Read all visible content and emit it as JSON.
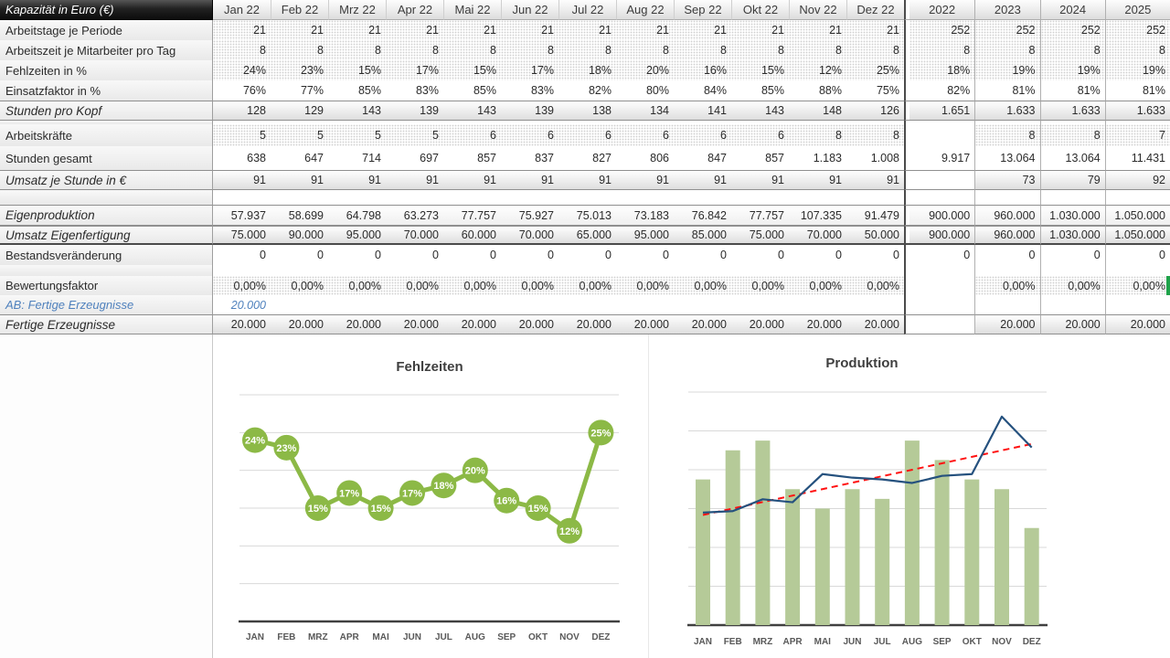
{
  "table": {
    "corner_label": "Kapazität in Euro (€)",
    "month_headers": [
      "Jan 22",
      "Feb 22",
      "Mrz 22",
      "Apr 22",
      "Mai 22",
      "Jun 22",
      "Jul 22",
      "Aug 22",
      "Sep 22",
      "Okt 22",
      "Nov 22",
      "Dez 22"
    ],
    "year_headers": [
      "2022",
      "2023",
      "2024",
      "2025"
    ],
    "rows": [
      {
        "label": "Arbeitstage je Periode",
        "style": "input",
        "comment": true,
        "monthly": [
          "21",
          "21",
          "21",
          "21",
          "21",
          "21",
          "21",
          "21",
          "21",
          "21",
          "21",
          "21"
        ],
        "annual": [
          "252",
          "252",
          "252",
          "252"
        ]
      },
      {
        "label": "Arbeitszeit je Mitarbeiter pro Tag",
        "style": "input",
        "comment": true,
        "monthly": [
          "8",
          "8",
          "8",
          "8",
          "8",
          "8",
          "8",
          "8",
          "8",
          "8",
          "8",
          "8"
        ],
        "annual": [
          "8",
          "8",
          "8",
          "8"
        ]
      },
      {
        "label": "Fehlzeiten in %",
        "style": "input",
        "comment": true,
        "monthly": [
          "24%",
          "23%",
          "15%",
          "17%",
          "15%",
          "17%",
          "18%",
          "20%",
          "16%",
          "15%",
          "12%",
          "25%"
        ],
        "annual": [
          "18%",
          "19%",
          "19%",
          "19%"
        ]
      },
      {
        "label": "Einsatzfaktor in %",
        "style": "calc",
        "monthly": [
          "76%",
          "77%",
          "85%",
          "83%",
          "85%",
          "83%",
          "82%",
          "80%",
          "84%",
          "85%",
          "88%",
          "75%"
        ],
        "annual": [
          "82%",
          "81%",
          "81%",
          "81%"
        ]
      },
      {
        "label": "Stunden pro Kopf",
        "style": "total",
        "monthly": [
          "128",
          "129",
          "143",
          "139",
          "143",
          "139",
          "138",
          "134",
          "141",
          "143",
          "148",
          "126"
        ],
        "annual": [
          "1.651",
          "1.633",
          "1.633",
          "1.633"
        ]
      },
      {
        "style": "spacer"
      },
      {
        "label": "Arbeitskräfte",
        "style": "input",
        "comment": true,
        "monthly": [
          "5",
          "5",
          "5",
          "5",
          "6",
          "6",
          "6",
          "6",
          "6",
          "6",
          "8",
          "8"
        ],
        "annual": [
          "",
          "8",
          "8",
          "7"
        ]
      },
      {
        "label": "Stunden gesamt",
        "style": "calc",
        "monthly": [
          "638",
          "647",
          "714",
          "697",
          "857",
          "837",
          "827",
          "806",
          "847",
          "857",
          "1.183",
          "1.008"
        ],
        "annual": [
          "9.917",
          "13.064",
          "13.064",
          "11.431"
        ]
      },
      {
        "label": "Umsatz je Stunde in €",
        "style": "total",
        "monthly": [
          "91",
          "91",
          "91",
          "91",
          "91",
          "91",
          "91",
          "91",
          "91",
          "91",
          "91",
          "91"
        ],
        "annual": [
          "",
          "73",
          "79",
          "92"
        ]
      },
      {
        "style": "spacer"
      },
      {
        "label": "Eigenproduktion",
        "style": "result",
        "monthly": [
          "57.937",
          "58.699",
          "64.798",
          "63.273",
          "77.757",
          "75.927",
          "75.013",
          "73.183",
          "76.842",
          "77.757",
          "107.335",
          "91.479"
        ],
        "annual": [
          "900.000",
          "960.000",
          "1.030.000",
          "1.050.000"
        ]
      },
      {
        "label": "Umsatz Eigenfertigung",
        "style": "total",
        "thick": true,
        "monthly": [
          "75.000",
          "90.000",
          "95.000",
          "70.000",
          "60.000",
          "70.000",
          "65.000",
          "95.000",
          "85.000",
          "75.000",
          "70.000",
          "50.000"
        ],
        "annual": [
          "900.000",
          "960.000",
          "1.030.000",
          "1.050.000"
        ]
      },
      {
        "label": "Bestandsveränderung",
        "style": "calc",
        "comment": true,
        "monthly": [
          "0",
          "0",
          "0",
          "0",
          "0",
          "0",
          "0",
          "0",
          "0",
          "0",
          "0",
          "0"
        ],
        "annual": [
          "0",
          "0",
          "0",
          "0"
        ]
      },
      {
        "style": "spacer"
      },
      {
        "label": "Bewertungsfaktor",
        "style": "input",
        "comment": true,
        "selection": true,
        "monthly": [
          "0,00%",
          "0,00%",
          "0,00%",
          "0,00%",
          "0,00%",
          "0,00%",
          "0,00%",
          "0,00%",
          "0,00%",
          "0,00%",
          "0,00%",
          "0,00%"
        ],
        "annual": [
          "",
          "0,00%",
          "0,00%",
          "0,00%"
        ]
      },
      {
        "label": "AB: Fertige Erzeugnisse",
        "style": "note",
        "monthly": [
          "20.000",
          "",
          "",
          "",
          "",
          "",
          "",
          "",
          "",
          "",
          "",
          ""
        ],
        "annual": [
          "",
          "",
          "",
          ""
        ]
      },
      {
        "label": "Fertige Erzeugnisse",
        "style": "total",
        "monthly": [
          "20.000",
          "20.000",
          "20.000",
          "20.000",
          "20.000",
          "20.000",
          "20.000",
          "20.000",
          "20.000",
          "20.000",
          "20.000",
          "20.000"
        ],
        "annual": [
          "",
          "20.000",
          "20.000",
          "20.000"
        ]
      }
    ]
  },
  "charts": [
    {
      "type": "line",
      "title": "Fehlzeiten",
      "categories": [
        "JAN",
        "FEB",
        "MRZ",
        "APR",
        "MAI",
        "JUN",
        "JUL",
        "AUG",
        "SEP",
        "OKT",
        "NOV",
        "DEZ"
      ],
      "series": [
        {
          "name": "Fehlzeiten in %",
          "values": [
            24,
            23,
            15,
            17,
            15,
            17,
            18,
            20,
            16,
            15,
            12,
            25
          ]
        }
      ],
      "unit": "%",
      "ylim": [
        0,
        30
      ],
      "grid_step": 5,
      "data_labels": true,
      "legend": "none"
    },
    {
      "type": "combo",
      "title": "Produktion",
      "categories": [
        "JAN",
        "FEB",
        "MRZ",
        "APR",
        "MAI",
        "JUN",
        "JUL",
        "AUG",
        "SEP",
        "OKT",
        "NOV",
        "DEZ"
      ],
      "series": [
        {
          "name": "Umsatz Eigenfertigung",
          "type": "bar",
          "values": [
            75000,
            90000,
            95000,
            70000,
            60000,
            70000,
            65000,
            95000,
            85000,
            75000,
            70000,
            50000
          ]
        },
        {
          "name": "Eigenproduktion",
          "type": "line",
          "values": [
            57937,
            58699,
            64798,
            63273,
            77757,
            75927,
            75013,
            73183,
            76842,
            77757,
            107335,
            91479
          ]
        },
        {
          "name": "Linearer Trend (Eigenproduktion)",
          "type": "trendline",
          "style": "dashed"
        }
      ],
      "ylim": [
        0,
        120000
      ],
      "grid_step": 20000,
      "legend": "none"
    }
  ],
  "colors": {
    "marker_green": "#8cb946",
    "bar_green": "#b5ca98",
    "line_navy": "#25517e",
    "trend_red": "#ff1111",
    "comment_red": "#cc0000",
    "note_blue": "#4f81bd",
    "selection_green": "#1fa24a",
    "gridline": "#d9d9d9",
    "axis": "#404040",
    "axis_label": "#595959"
  }
}
